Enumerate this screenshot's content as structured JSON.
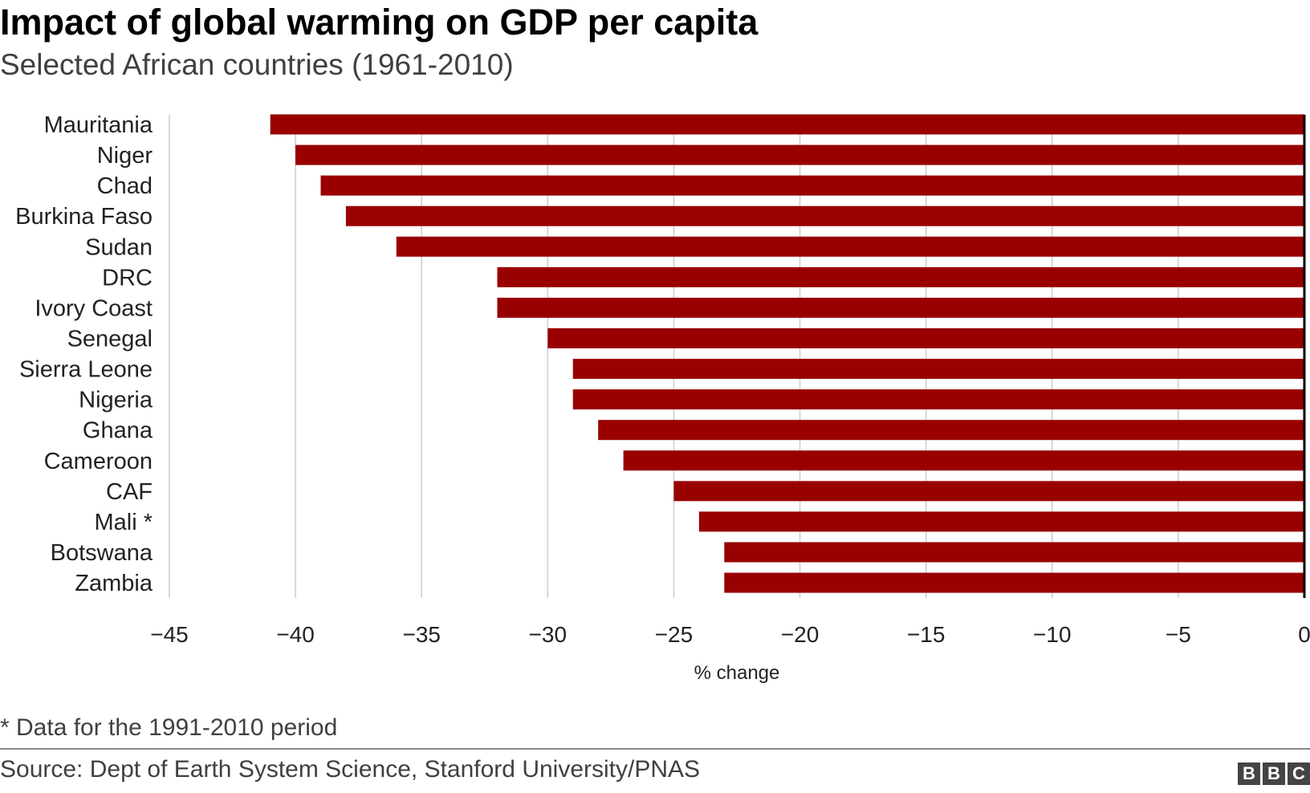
{
  "chart_data": {
    "type": "bar",
    "orientation": "horizontal",
    "title": "Impact of global warming on GDP per capita",
    "subtitle": "Selected African countries (1961-2010)",
    "xlabel": "% change",
    "ylabel": "",
    "xlim": [
      -45,
      0
    ],
    "xticks": [
      -45,
      -40,
      -35,
      -30,
      -25,
      -20,
      -15,
      -10,
      -5,
      0
    ],
    "xtick_labels": [
      "−45",
      "−40",
      "−35",
      "−30",
      "−25",
      "−20",
      "−15",
      "−10",
      "−5",
      "0"
    ],
    "grid": "vertical",
    "bar_color": "#990000",
    "categories": [
      "Mauritania",
      "Niger",
      "Chad",
      "Burkina Faso",
      "Sudan",
      "DRC",
      "Ivory Coast",
      "Senegal",
      "Sierra Leone",
      "Nigeria",
      "Ghana",
      "Cameroon",
      "CAF",
      "Mali *",
      "Botswana",
      "Zambia"
    ],
    "values": [
      -41,
      -40,
      -39,
      -38,
      -36,
      -32,
      -32,
      -30,
      -29,
      -29,
      -28,
      -27,
      -25,
      -24,
      -23,
      -23
    ]
  },
  "footnote": "* Data for the 1991-2010 period",
  "source": "Source: Dept of Earth System Science, Stanford University/PNAS",
  "logo": [
    "B",
    "B",
    "C"
  ]
}
